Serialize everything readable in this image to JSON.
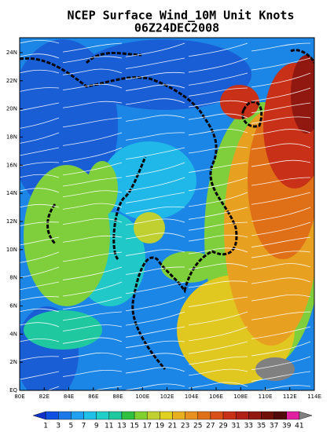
{
  "header": {
    "title": "NCEP Surface Wind_10M Unit Knots",
    "subtitle": "06Z24DEC2008"
  },
  "lat_labels": [
    "24N",
    "22N",
    "20N",
    "18N",
    "16N",
    "14N",
    "12N",
    "10N",
    "8N",
    "6N",
    "4N",
    "2N",
    "EQ"
  ],
  "lon_labels": [
    "80E",
    "82E",
    "84E",
    "86E",
    "88E",
    "100E",
    "102E",
    "104E",
    "106E",
    "108E",
    "110E",
    "112E",
    "114E"
  ],
  "colorbar": {
    "levels": [
      1,
      3,
      5,
      7,
      9,
      11,
      13,
      15,
      17,
      19,
      21,
      23,
      25,
      27,
      29,
      31,
      33,
      35,
      37,
      39,
      41
    ],
    "colors": [
      "#1030c8",
      "#1050e0",
      "#1c78e8",
      "#20a0f0",
      "#20c0e8",
      "#20d0c8",
      "#20c8a0",
      "#30c040",
      "#80d030",
      "#c0d030",
      "#e0d020",
      "#e8b020",
      "#e89020",
      "#e07018",
      "#d85018",
      "#c83018",
      "#b02018",
      "#901810",
      "#701008",
      "#500808",
      "#e020a0",
      "#808080"
    ]
  }
}
